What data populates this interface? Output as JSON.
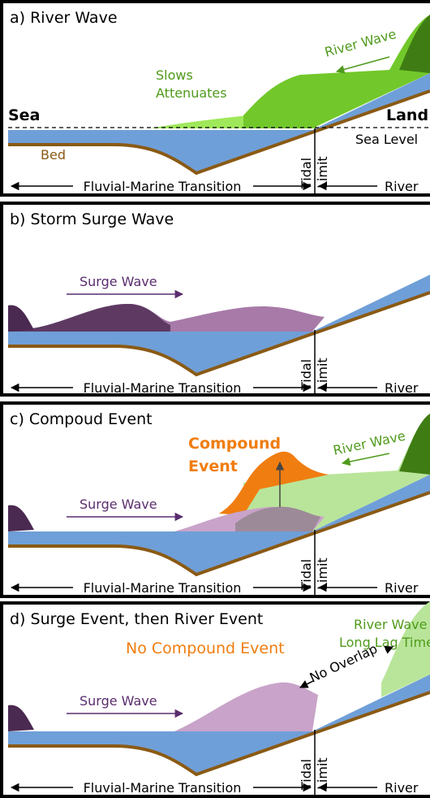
{
  "panels": [
    {
      "title": "a) River Wave",
      "sea": "Sea",
      "land": "Land",
      "slows": "Slows",
      "attenuates": "Attenuates",
      "river_wave": "River Wave",
      "sea_level": "Sea Level",
      "bed": "Bed",
      "tidal": "Tidal",
      "limit": "Limit",
      "transition": "Fluvial-Marine Transition",
      "river": "River"
    },
    {
      "title": "b) Storm Surge Wave",
      "surge_wave": "Surge Wave",
      "tidal": "Tidal",
      "limit": "Limit",
      "transition": "Fluvial-Marine Transition",
      "river": "River"
    },
    {
      "title": "c) Compoud Event",
      "compound_1": "Compound",
      "compound_2": "Event",
      "river_wave": "River Wave",
      "surge_wave": "Surge Wave",
      "tidal": "Tidal",
      "limit": "Limit",
      "transition": "Fluvial-Marine Transition",
      "river": "River"
    },
    {
      "title": "d) Surge Event, then River Event",
      "river_wave": "River Wave",
      "lag": "Long Lag Time",
      "no_compound": "No Compound Event",
      "no_overlap": "No Overlap",
      "surge_wave": "Surge Wave",
      "tidal": "Tidal",
      "limit": "Limit",
      "transition": "Fluvial-Marine Transition",
      "river": "River"
    }
  ]
}
